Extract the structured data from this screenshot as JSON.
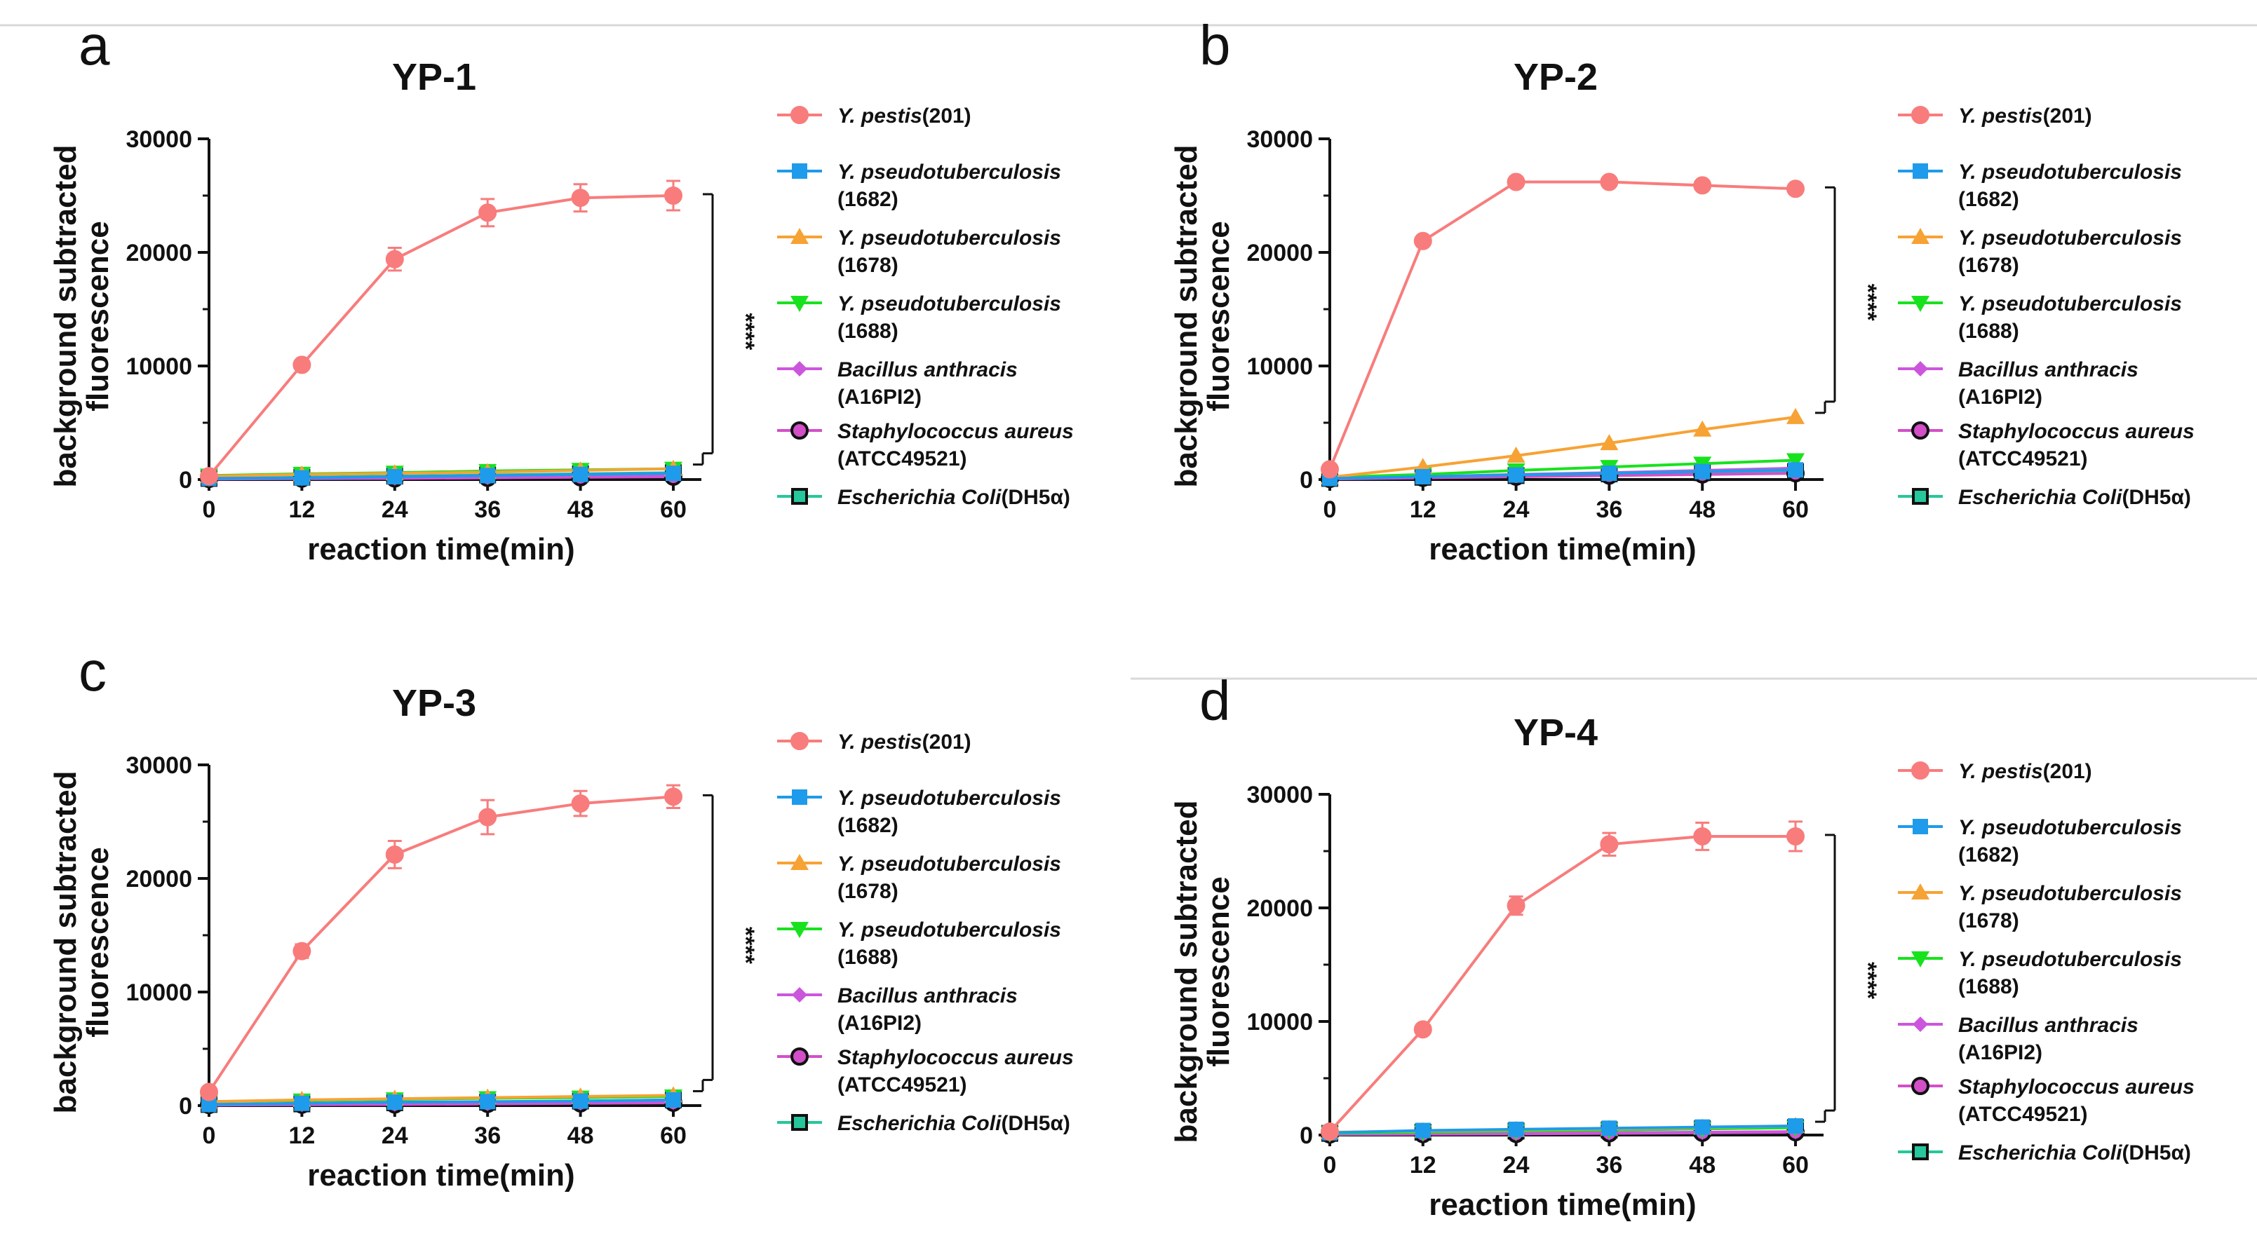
{
  "figure": {
    "panel_labels": [
      "a",
      "b",
      "c",
      "d"
    ],
    "significance": "****"
  },
  "legend": [
    {
      "italic": "Y. pestis",
      "rest": "(201)",
      "line2": "",
      "color": "#F87C7C",
      "marker": "circle-filled"
    },
    {
      "italic": "Y. pseudotuberculosis",
      "rest": "",
      "line2": "(1682)",
      "color": "#1E9BEA",
      "marker": "square"
    },
    {
      "italic": "Y. pseudotuberculosis",
      "rest": "",
      "line2": "(1678)",
      "color": "#F7A234",
      "marker": "triangle-up"
    },
    {
      "italic": "Y. pseudotuberculosis",
      "rest": "",
      "line2": "(1688)",
      "color": "#18E21E",
      "marker": "triangle-down"
    },
    {
      "italic": "Bacillus anthracis",
      "rest": "",
      "line2": "(A16PI2)",
      "color": "#CC55DD",
      "marker": "diamond"
    },
    {
      "italic": "Staphylococcus aureus",
      "rest": "",
      "line2": "(ATCC49521)",
      "color": "#111111",
      "marker": "circle-open",
      "fill": "#D24FC8"
    },
    {
      "italic": "Escherichia Coli",
      "rest": "(DH5α)",
      "line2": "",
      "color": "#111111",
      "marker": "square-open",
      "fill": "#26C79A"
    }
  ],
  "chart_data": [
    {
      "type": "line",
      "panel": "a",
      "title": "YP-1",
      "xlabel": "reaction time(min)",
      "ylabel": [
        "background subtracted",
        "fluorescence"
      ],
      "x": [
        0,
        12,
        24,
        36,
        48,
        60
      ],
      "xticks": [
        "0",
        "12",
        "24",
        "36",
        "48",
        "60"
      ],
      "yticks": [
        "0",
        "10000",
        "20000",
        "30000"
      ],
      "ylim": [
        0,
        30000
      ],
      "significance": "****",
      "series": [
        {
          "name": "Y. pestis(201)",
          "values": [
            300,
            10100,
            19400,
            23500,
            24800,
            25000
          ],
          "err": [
            0,
            0,
            1000,
            1200,
            1200,
            1300
          ]
        },
        {
          "name": "Y. pseudotuberculosis (1682)",
          "values": [
            100,
            150,
            250,
            350,
            450,
            550
          ],
          "err": [
            0,
            0,
            0,
            0,
            0,
            0
          ]
        },
        {
          "name": "Y. pseudotuberculosis (1678)",
          "values": [
            300,
            450,
            550,
            650,
            800,
            950
          ],
          "err": [
            0,
            0,
            0,
            0,
            0,
            0
          ]
        },
        {
          "name": "Y. pseudotuberculosis (1688)",
          "values": [
            350,
            500,
            600,
            750,
            850,
            950
          ],
          "err": [
            0,
            0,
            0,
            0,
            0,
            0
          ]
        },
        {
          "name": "Bacillus anthracis (A16PI2)",
          "values": [
            50,
            100,
            150,
            200,
            300,
            350
          ],
          "err": [
            0,
            0,
            0,
            0,
            0,
            0
          ]
        },
        {
          "name": "Staphylococcus aureus (ATCC49521)",
          "values": [
            50,
            80,
            100,
            150,
            200,
            250
          ],
          "err": [
            0,
            0,
            0,
            0,
            0,
            0
          ]
        },
        {
          "name": "Escherichia Coli(DH5α)",
          "values": [
            100,
            200,
            300,
            400,
            500,
            600
          ],
          "err": [
            0,
            0,
            0,
            0,
            0,
            0
          ]
        }
      ]
    },
    {
      "type": "line",
      "panel": "b",
      "title": "YP-2",
      "xlabel": "reaction time(min)",
      "ylabel": [
        "background subtracted",
        "fluorescence"
      ],
      "x": [
        0,
        12,
        24,
        36,
        48,
        60
      ],
      "xticks": [
        "0",
        "12",
        "24",
        "36",
        "48",
        "60"
      ],
      "yticks": [
        "0",
        "10000",
        "20000",
        "30000"
      ],
      "ylim": [
        0,
        30000
      ],
      "significance": "****",
      "series": [
        {
          "name": "Y. pestis(201)",
          "values": [
            900,
            21000,
            26200,
            26200,
            25900,
            25600
          ],
          "err": [
            0,
            0,
            0,
            0,
            0,
            0
          ]
        },
        {
          "name": "Y. pseudotuberculosis (1682)",
          "values": [
            100,
            250,
            400,
            550,
            700,
            850
          ],
          "err": [
            0,
            0,
            0,
            0,
            0,
            0
          ]
        },
        {
          "name": "Y. pseudotuberculosis (1678)",
          "values": [
            200,
            1100,
            2100,
            3200,
            4400,
            5500
          ],
          "err": [
            0,
            0,
            0,
            0,
            0,
            0
          ]
        },
        {
          "name": "Y. pseudotuberculosis (1688)",
          "values": [
            200,
            450,
            800,
            1100,
            1400,
            1700
          ],
          "err": [
            0,
            0,
            0,
            0,
            0,
            0
          ]
        },
        {
          "name": "Bacillus anthracis (A16PI2)",
          "values": [
            100,
            250,
            450,
            600,
            800,
            1000
          ],
          "err": [
            0,
            0,
            0,
            0,
            0,
            0
          ]
        },
        {
          "name": "Staphylococcus aureus (ATCC49521)",
          "values": [
            50,
            150,
            250,
            350,
            450,
            550
          ],
          "err": [
            0,
            0,
            0,
            0,
            0,
            0
          ]
        },
        {
          "name": "Escherichia Coli(DH5α)",
          "values": [
            100,
            200,
            350,
            500,
            600,
            700
          ],
          "err": [
            0,
            0,
            0,
            0,
            0,
            0
          ]
        }
      ]
    },
    {
      "type": "line",
      "panel": "c",
      "title": "YP-3",
      "xlabel": "reaction time(min)",
      "ylabel": [
        "background subtracted",
        "fluorescence"
      ],
      "x": [
        0,
        12,
        24,
        36,
        48,
        60
      ],
      "xticks": [
        "0",
        "12",
        "24",
        "36",
        "48",
        "60"
      ],
      "yticks": [
        "0",
        "10000",
        "20000",
        "30000"
      ],
      "ylim": [
        0,
        30000
      ],
      "significance": "****",
      "series": [
        {
          "name": "Y. pestis(201)",
          "values": [
            1200,
            13600,
            22100,
            25400,
            26600,
            27200
          ],
          "err": [
            0,
            600,
            1200,
            1500,
            1100,
            1000
          ]
        },
        {
          "name": "Y. pseudotuberculosis (1682)",
          "values": [
            100,
            200,
            300,
            350,
            400,
            500
          ],
          "err": [
            0,
            0,
            0,
            0,
            0,
            0
          ]
        },
        {
          "name": "Y. pseudotuberculosis (1678)",
          "values": [
            350,
            500,
            600,
            700,
            800,
            900
          ],
          "err": [
            0,
            0,
            0,
            0,
            0,
            0
          ]
        },
        {
          "name": "Y. pseudotuberculosis (1688)",
          "values": [
            350,
            450,
            550,
            650,
            700,
            800
          ],
          "err": [
            0,
            0,
            0,
            0,
            0,
            0
          ]
        },
        {
          "name": "Bacillus anthracis (A16PI2)",
          "values": [
            50,
            100,
            150,
            200,
            250,
            300
          ],
          "err": [
            0,
            0,
            0,
            0,
            0,
            0
          ]
        },
        {
          "name": "Staphylococcus aureus (ATCC49521)",
          "values": [
            50,
            80,
            100,
            150,
            200,
            250
          ],
          "err": [
            0,
            0,
            0,
            0,
            0,
            0
          ]
        },
        {
          "name": "Escherichia Coli(DH5α)",
          "values": [
            100,
            150,
            250,
            300,
            400,
            500
          ],
          "err": [
            0,
            0,
            0,
            0,
            0,
            0
          ]
        }
      ]
    },
    {
      "type": "line",
      "panel": "d",
      "title": "YP-4",
      "xlabel": "reaction time(min)",
      "ylabel": [
        "background subtracted",
        "fluorescence"
      ],
      "x": [
        0,
        12,
        24,
        36,
        48,
        60
      ],
      "xticks": [
        "0",
        "12",
        "24",
        "36",
        "48",
        "60"
      ],
      "yticks": [
        "0",
        "10000",
        "20000",
        "30000"
      ],
      "ylim": [
        0,
        30000
      ],
      "significance": "****",
      "series": [
        {
          "name": "Y. pestis(201)",
          "values": [
            300,
            9300,
            20200,
            25600,
            26300,
            26300
          ],
          "err": [
            0,
            0,
            800,
            1000,
            1200,
            1300
          ]
        },
        {
          "name": "Y. pseudotuberculosis (1682)",
          "values": [
            200,
            400,
            500,
            600,
            700,
            800
          ],
          "err": [
            0,
            0,
            0,
            0,
            0,
            0
          ]
        },
        {
          "name": "Y. pseudotuberculosis (1678)",
          "values": [
            250,
            350,
            450,
            550,
            650,
            800
          ],
          "err": [
            0,
            0,
            0,
            0,
            0,
            0
          ]
        },
        {
          "name": "Y. pseudotuberculosis (1688)",
          "values": [
            150,
            250,
            350,
            450,
            550,
            650
          ],
          "err": [
            0,
            0,
            0,
            0,
            0,
            0
          ]
        },
        {
          "name": "Bacillus anthracis (A16PI2)",
          "values": [
            50,
            100,
            150,
            200,
            250,
            300
          ],
          "err": [
            0,
            0,
            0,
            0,
            0,
            0
          ]
        },
        {
          "name": "Staphylococcus aureus (ATCC49521)",
          "values": [
            50,
            80,
            100,
            150,
            200,
            250
          ],
          "err": [
            0,
            0,
            0,
            0,
            0,
            0
          ]
        },
        {
          "name": "Escherichia Coli(DH5α)",
          "values": [
            150,
            250,
            350,
            450,
            550,
            650
          ],
          "err": [
            0,
            0,
            0,
            0,
            0,
            0
          ]
        }
      ]
    }
  ]
}
